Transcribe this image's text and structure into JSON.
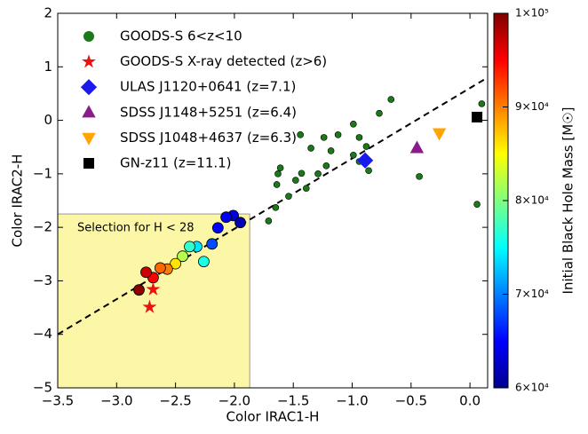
{
  "chart_data": {
    "type": "scatter",
    "x_label": "Color IRAC1-H",
    "y_label": "Color IRAC2-H",
    "xlim": [
      -3.5,
      0.15
    ],
    "ylim": [
      -5,
      2
    ],
    "xticks": [
      {
        "value": -3.5,
        "label": "−3.5"
      },
      {
        "value": -3.0,
        "label": "−3.0"
      },
      {
        "value": -2.5,
        "label": "−2.5"
      },
      {
        "value": -2.0,
        "label": "−2.0"
      },
      {
        "value": -1.5,
        "label": "−1.5"
      },
      {
        "value": -1.0,
        "label": "−1.0"
      },
      {
        "value": -0.5,
        "label": "−0.5"
      },
      {
        "value": 0,
        "label": "0.0"
      }
    ],
    "yticks": [
      {
        "value": -5,
        "label": "−5"
      },
      {
        "value": -4,
        "label": "−4"
      },
      {
        "value": -3,
        "label": "−3"
      },
      {
        "value": -2,
        "label": "−2"
      },
      {
        "value": -1,
        "label": "−1"
      },
      0,
      1,
      2
    ],
    "annotation": "Selection for H < 28",
    "selection_box": {
      "x": [
        -3.5,
        -1.87
      ],
      "y": [
        -5,
        -1.75
      ]
    },
    "fit_line": {
      "x": [
        -3.5,
        0.15
      ],
      "y": [
        -4.0,
        0.8
      ]
    },
    "series": [
      {
        "name": "GOODS-S 6<z<10",
        "color": "#1a7a1a",
        "marker": "circle",
        "x": [
          -0.67,
          0.1,
          -0.77,
          -0.99,
          -1.12,
          -1.44,
          -1.24,
          -0.94,
          -0.88,
          -1.18,
          -0.99,
          -1.35,
          -1.22,
          -1.43,
          -1.29,
          -1.61,
          -1.63,
          -1.48,
          -1.64,
          -1.39,
          -0.94,
          -0.86,
          -0.43,
          -1.65,
          -1.71,
          -1.54,
          0.06
        ],
        "y": [
          0.39,
          0.31,
          0.13,
          -0.07,
          -0.27,
          -0.27,
          -0.32,
          -0.32,
          -0.49,
          -0.57,
          -0.65,
          -0.52,
          -0.85,
          -0.99,
          -1.0,
          -0.89,
          -1.0,
          -1.12,
          -1.2,
          -1.27,
          -0.77,
          -0.94,
          -1.05,
          -1.63,
          -1.88,
          -1.42,
          -1.57
        ]
      },
      {
        "name": "GOODS-S X-ray detected (z>6)",
        "color": "#ee1111",
        "marker": "star",
        "x": [
          -2.69,
          -2.72
        ],
        "y": [
          -3.16,
          -3.49
        ]
      },
      {
        "name": "ULAS J1120+0641 (z=7.1)",
        "color": "#1a1aee",
        "marker": "diamond",
        "x": [
          -0.89
        ],
        "y": [
          -0.75
        ]
      },
      {
        "name": "SDSS J1148+5251 (z=6.4)",
        "color": "#8b1a8b",
        "marker": "triangle",
        "x": [
          -0.45
        ],
        "y": [
          -0.52
        ]
      },
      {
        "name": "SDSS J1048+4637 (z=6.3)",
        "color": "#ffa500",
        "marker": "triangle-down",
        "x": [
          -0.26
        ],
        "y": [
          -0.24
        ]
      },
      {
        "name": "GN-z11 (z=11.1)",
        "color": "#000000",
        "marker": "square",
        "x": [
          0.06
        ],
        "y": [
          0.06
        ]
      }
    ],
    "mass_points": {
      "x": [
        -2.01,
        -2.07,
        -1.95,
        -2.14,
        -2.19,
        -2.26,
        -2.32,
        -2.38,
        -2.44,
        -2.5,
        -2.57,
        -2.63,
        -2.69,
        -2.75,
        -2.81
      ],
      "y": [
        -1.78,
        -1.81,
        -1.91,
        -2.01,
        -2.31,
        -2.64,
        -2.36,
        -2.36,
        -2.54,
        -2.68,
        -2.78,
        -2.76,
        -2.94,
        -2.84,
        -3.17
      ],
      "mass": [
        64000,
        64500,
        62000,
        65000,
        68000,
        76000,
        74000,
        77000,
        82000,
        86000,
        90000,
        91000,
        95000,
        97000,
        99500
      ]
    },
    "colorbar_label": "Initial Black Hole Mass [M☉]",
    "clim": [
      60000,
      100000
    ],
    "cticks": [
      {
        "value": 60000,
        "label": "6×10⁴"
      },
      {
        "value": 70000,
        "label": "7×10⁴"
      },
      {
        "value": 80000,
        "label": "8×10⁴"
      },
      {
        "value": 90000,
        "label": "9×10⁴"
      },
      {
        "value": 100000,
        "label": "1×10⁵"
      }
    ]
  }
}
